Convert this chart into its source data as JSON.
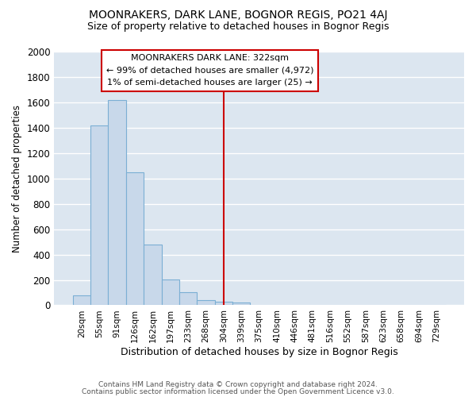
{
  "title": "MOONRAKERS, DARK LANE, BOGNOR REGIS, PO21 4AJ",
  "subtitle": "Size of property relative to detached houses in Bognor Regis",
  "xlabel": "Distribution of detached houses by size in Bognor Regis",
  "ylabel": "Number of detached properties",
  "bar_color": "#c8d8ea",
  "bar_edge_color": "#7bafd4",
  "categories": [
    "20sqm",
    "55sqm",
    "91sqm",
    "126sqm",
    "162sqm",
    "197sqm",
    "233sqm",
    "268sqm",
    "304sqm",
    "339sqm",
    "375sqm",
    "410sqm",
    "446sqm",
    "481sqm",
    "516sqm",
    "552sqm",
    "587sqm",
    "623sqm",
    "658sqm",
    "694sqm",
    "729sqm"
  ],
  "values": [
    80,
    1420,
    1620,
    1050,
    480,
    205,
    100,
    40,
    25,
    20,
    0,
    0,
    0,
    0,
    0,
    0,
    0,
    0,
    0,
    0,
    0
  ],
  "vline_index": 8.0,
  "vline_color": "#cc0000",
  "annotation_lines": [
    "MOONRAKERS DARK LANE: 322sqm",
    "← 99% of detached houses are smaller (4,972)",
    "1% of semi-detached houses are larger (25) →"
  ],
  "annotation_box_color": "#ffffff",
  "annotation_border_color": "#cc0000",
  "ylim": [
    0,
    2000
  ],
  "yticks": [
    0,
    200,
    400,
    600,
    800,
    1000,
    1200,
    1400,
    1600,
    1800,
    2000
  ],
  "plot_bg_color": "#dce6f0",
  "figure_bg_color": "#ffffff",
  "grid_color": "#ffffff",
  "footer_line1": "Contains HM Land Registry data © Crown copyright and database right 2024.",
  "footer_line2": "Contains public sector information licensed under the Open Government Licence v3.0."
}
